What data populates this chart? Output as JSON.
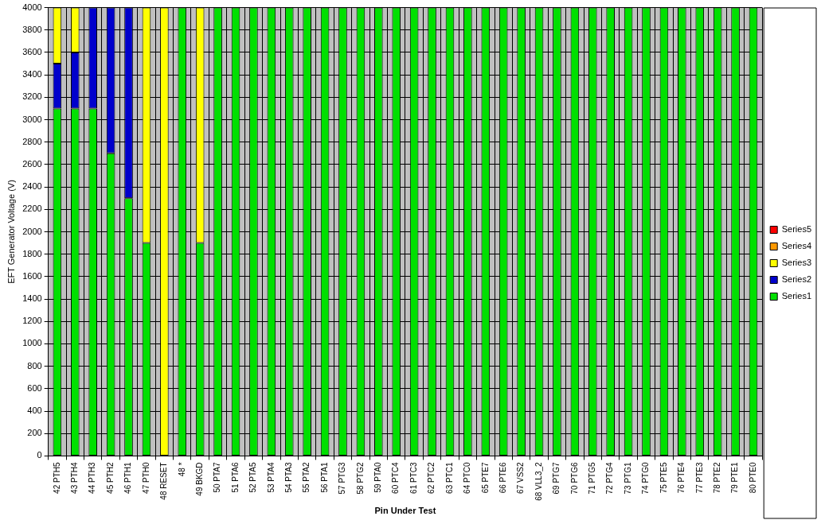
{
  "chart_data": {
    "type": "bar",
    "stacked": true,
    "xlabel": "Pin Under Test",
    "ylabel": "EFT Generator Voltage (V)",
    "categories": [
      "42 PTH5",
      "43 PTH4",
      "44 PTH3",
      "45 PTH2",
      "46 PTH1",
      "47 PTH0",
      "48 RESET",
      "48 *",
      "49 BKGD",
      "50 PTA7",
      "51 PTA6",
      "52 PTA5",
      "53 PTA4",
      "54 PTA3",
      "55 PTA2",
      "56 PTA1",
      "57 PTG3",
      "58 PTG2",
      "59 PTA0",
      "60 PTC4",
      "61 PTC3",
      "62 PTC2",
      "63 PTC1",
      "64 PTC0",
      "65 PTE7",
      "66 PTE6",
      "67 VSS2",
      "68 VLL3_2",
      "69 PTG7",
      "70 PTG6",
      "71 PTG5",
      "72 PTG4",
      "73 PTG1",
      "74 PTG0",
      "75 PTE5",
      "76 PTE4",
      "77 PTE3",
      "78 PTE2",
      "79 PTE1",
      "80 PTE0"
    ],
    "series": [
      {
        "name": "Series1",
        "color": "#00e000",
        "values": [
          3100,
          3100,
          3100,
          2700,
          2300,
          1900,
          null,
          4000,
          1900,
          4000,
          4000,
          4000,
          4000,
          4000,
          4000,
          4000,
          4000,
          4000,
          4000,
          4000,
          4000,
          4000,
          4000,
          4000,
          4000,
          4000,
          4000,
          4000,
          4000,
          4000,
          4000,
          4000,
          4000,
          4000,
          4000,
          4000,
          4000,
          4000,
          4000,
          4000
        ]
      },
      {
        "name": "Series2",
        "color": "#0000cc",
        "values": [
          400,
          500,
          900,
          1300,
          1700,
          null,
          null,
          null,
          null,
          null,
          null,
          null,
          null,
          null,
          null,
          null,
          null,
          null,
          null,
          null,
          null,
          null,
          null,
          null,
          null,
          null,
          null,
          null,
          null,
          null,
          null,
          null,
          null,
          null,
          null,
          null,
          null,
          null,
          null,
          null
        ]
      },
      {
        "name": "Series3",
        "color": "#ffff00",
        "values": [
          500,
          400,
          null,
          null,
          null,
          2100,
          4000,
          null,
          2100,
          null,
          null,
          null,
          null,
          null,
          null,
          null,
          null,
          null,
          null,
          null,
          null,
          null,
          null,
          null,
          null,
          null,
          null,
          null,
          null,
          null,
          null,
          null,
          null,
          null,
          null,
          null,
          null,
          null,
          null,
          null
        ]
      },
      {
        "name": "Series4",
        "color": "#ff9900",
        "values": [
          null,
          null,
          null,
          null,
          null,
          null,
          null,
          null,
          null,
          null,
          null,
          null,
          null,
          null,
          null,
          null,
          null,
          null,
          null,
          null,
          null,
          null,
          null,
          null,
          null,
          null,
          null,
          null,
          null,
          null,
          null,
          null,
          null,
          null,
          null,
          null,
          null,
          null,
          null,
          null
        ]
      },
      {
        "name": "Series5",
        "color": "#ff0000",
        "values": [
          null,
          null,
          null,
          null,
          null,
          null,
          null,
          null,
          null,
          null,
          null,
          null,
          null,
          null,
          null,
          null,
          null,
          null,
          null,
          null,
          null,
          null,
          null,
          null,
          null,
          null,
          null,
          null,
          null,
          null,
          null,
          null,
          null,
          null,
          null,
          null,
          null,
          null,
          null,
          null
        ]
      }
    ],
    "ylim": [
      0,
      4000
    ],
    "yticks": [
      0,
      200,
      400,
      600,
      800,
      1000,
      1200,
      1400,
      1600,
      1800,
      2000,
      2200,
      2400,
      2600,
      2800,
      3000,
      3200,
      3400,
      3600,
      3800,
      4000
    ],
    "grid": true,
    "legend": "right"
  }
}
